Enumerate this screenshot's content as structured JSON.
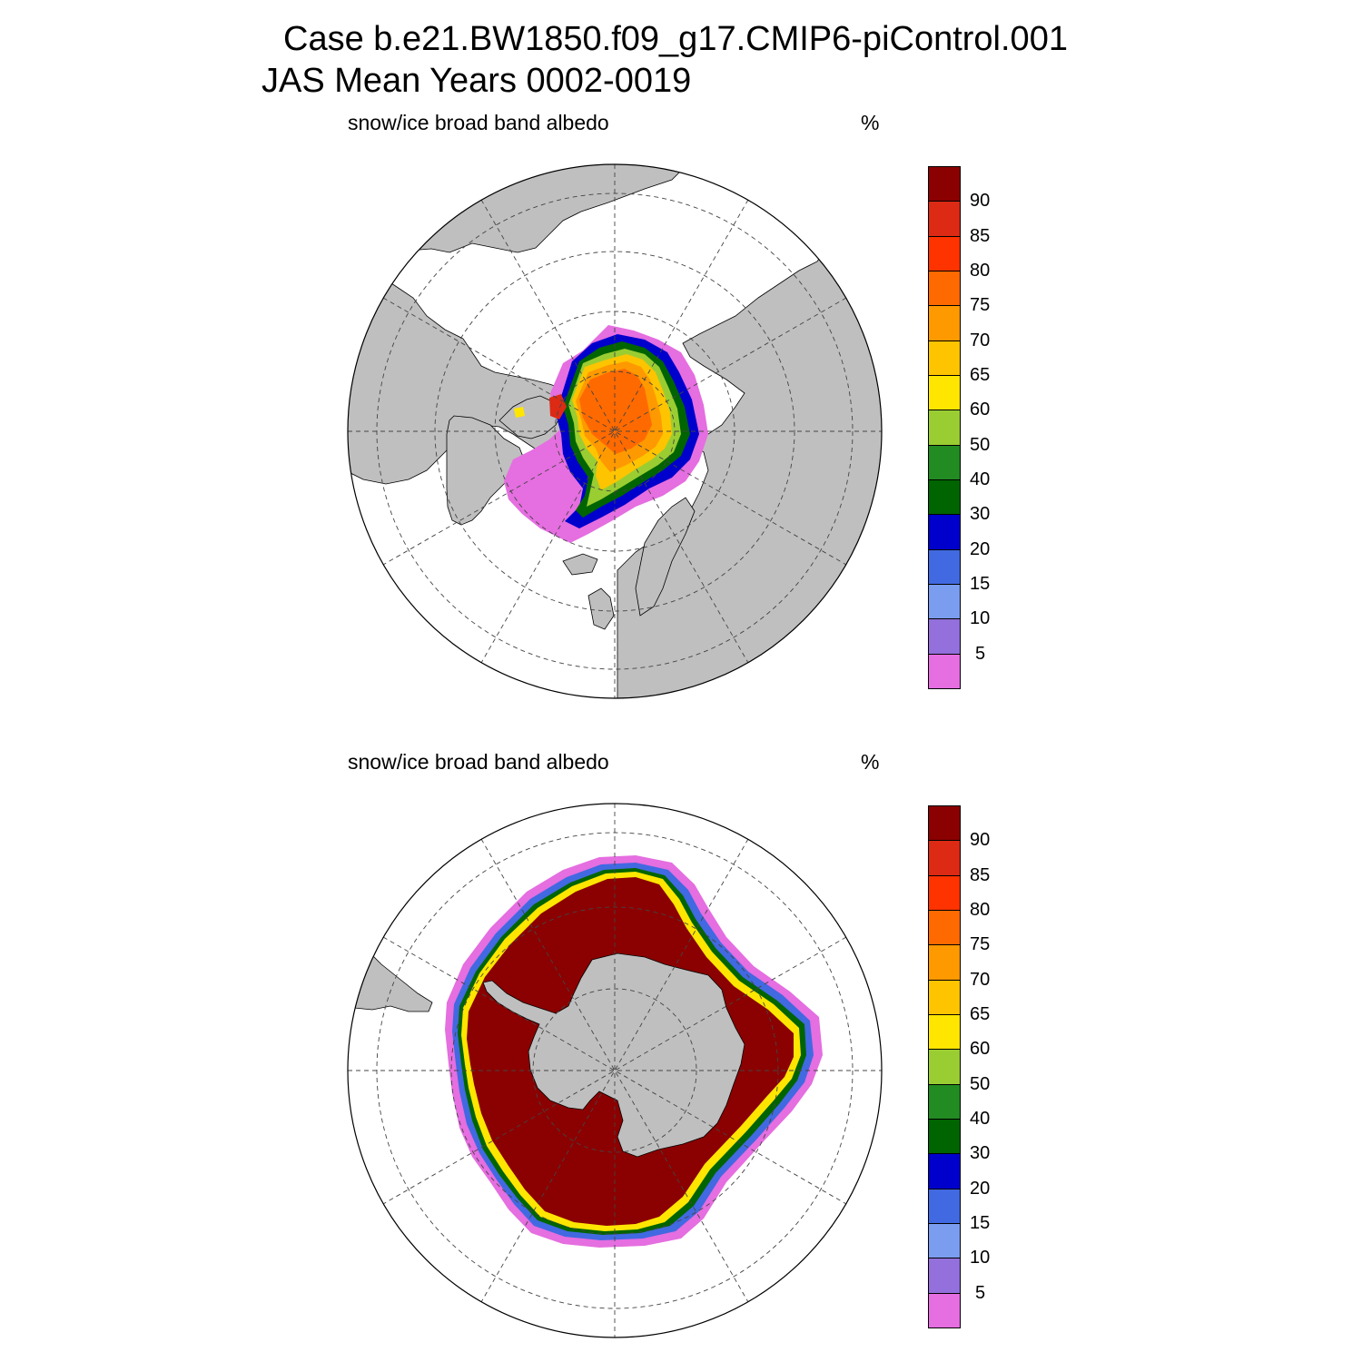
{
  "title": {
    "line1": "Case b.e21.BW1850.f09_g17.CMIP6-piControl.001",
    "line2": "JAS Mean   Years 0002-0019"
  },
  "colors": {
    "land": "#bfbfbf",
    "ocean": "#ffffff",
    "colorbar": [
      "#e56ee0",
      "#9370db",
      "#7b9df0",
      "#4169e1",
      "#0000cd",
      "#006400",
      "#228b22",
      "#9acd32",
      "#ffe600",
      "#ffc400",
      "#ff9900",
      "#ff6a00",
      "#ff3300",
      "#dc2a15",
      "#8b0000"
    ]
  },
  "colorbar_labels": [
    "5",
    "10",
    "15",
    "20",
    "30",
    "40",
    "50",
    "60",
    "65",
    "70",
    "75",
    "80",
    "85",
    "90"
  ],
  "panels": [
    {
      "id": "north",
      "label": "snow/ice broad band albedo",
      "unit": "%",
      "hemisphere": "north",
      "ice_field": [
        {
          "level": 0,
          "desc": "marginal ice zone"
        },
        {
          "level": 4,
          "desc": "ice edge"
        },
        {
          "level": 11,
          "desc": "central pack"
        }
      ]
    },
    {
      "id": "south",
      "label": "snow/ice broad band albedo",
      "unit": "%",
      "hemisphere": "south",
      "ice_field": [
        {
          "level": 0,
          "desc": "marginal ice zone"
        },
        {
          "level": 14,
          "desc": "central pack"
        }
      ]
    }
  ]
}
